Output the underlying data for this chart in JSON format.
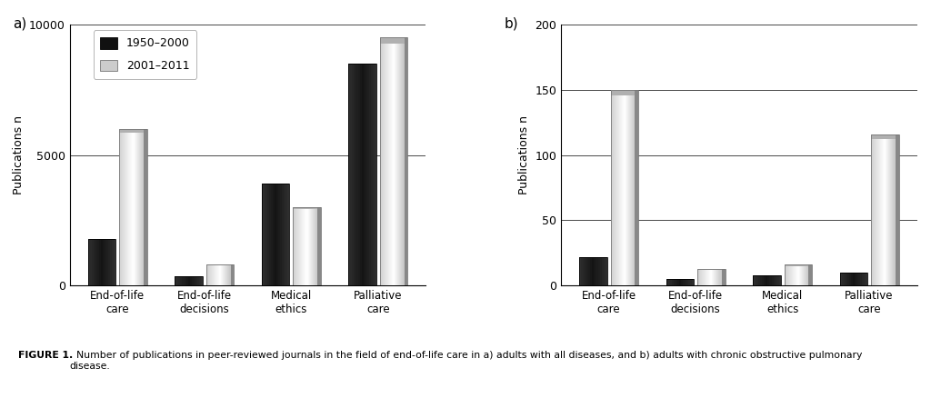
{
  "categories": [
    "End-of-life\ncare",
    "End-of-life\ndecisions",
    "Medical\nethics",
    "Palliative\ncare"
  ],
  "panel_a": {
    "label": "a)",
    "values_1950": [
      1800,
      350,
      3900,
      8500
    ],
    "values_2001": [
      6000,
      800,
      3000,
      9500
    ],
    "ylim": [
      0,
      10000
    ],
    "yticks": [
      0,
      5000,
      10000
    ],
    "ylabel": "Publications n"
  },
  "panel_b": {
    "label": "b)",
    "values_1950": [
      22,
      5,
      8,
      10
    ],
    "values_2001": [
      150,
      13,
      16,
      116
    ],
    "ylim": [
      0,
      200
    ],
    "yticks": [
      0,
      50,
      100,
      150,
      200
    ],
    "ylabel": "Publications n"
  },
  "legend_labels": [
    "1950–2000",
    "2001–2011"
  ],
  "bar_width": 0.32,
  "figure_caption_bold": "FIGURE 1.",
  "figure_caption_normal": "  Number of publications in peer-reviewed journals in the field of end-of-life care in a) adults with all diseases, and b) adults with chronic obstructive pulmonary\ndisease."
}
